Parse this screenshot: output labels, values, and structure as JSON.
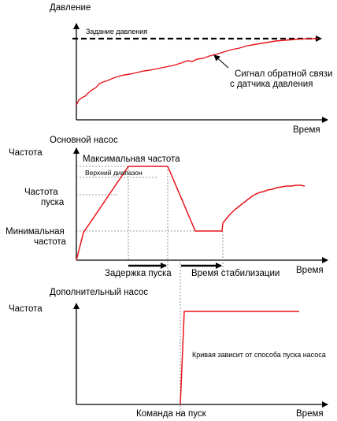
{
  "pressure_panel": {
    "title": "Давление",
    "setpoint_label": "Задание давления",
    "feedback_label_line1": "Сигнал обратной связи",
    "feedback_label_line2": "с датчика давления",
    "x_axis_label": "Время"
  },
  "main_pump_panel": {
    "title": "Основной насос",
    "y_label_frequency": "Частота",
    "max_frequency_label": "Максимальная частота",
    "upper_range_label": "Верхний диапазон",
    "start_frequency_line1": "Частота",
    "start_frequency_line2": "пуска",
    "min_frequency_line1": "Минимальная",
    "min_frequency_line2": "частота",
    "start_delay_label": "Задержка пуска",
    "stabilization_time_label": "Время стабилизации",
    "x_axis_label": "Время"
  },
  "aux_pump_panel": {
    "title": "Дополнительный насос",
    "y_label_frequency": "Частота",
    "curve_note": "Кривая зависит от способа пуска насоса",
    "start_command_label": "Команда на пуск",
    "x_axis_label": "Время"
  },
  "colors": {
    "curve": "#e8141b",
    "axis": "#000000",
    "guide": "#777777"
  }
}
